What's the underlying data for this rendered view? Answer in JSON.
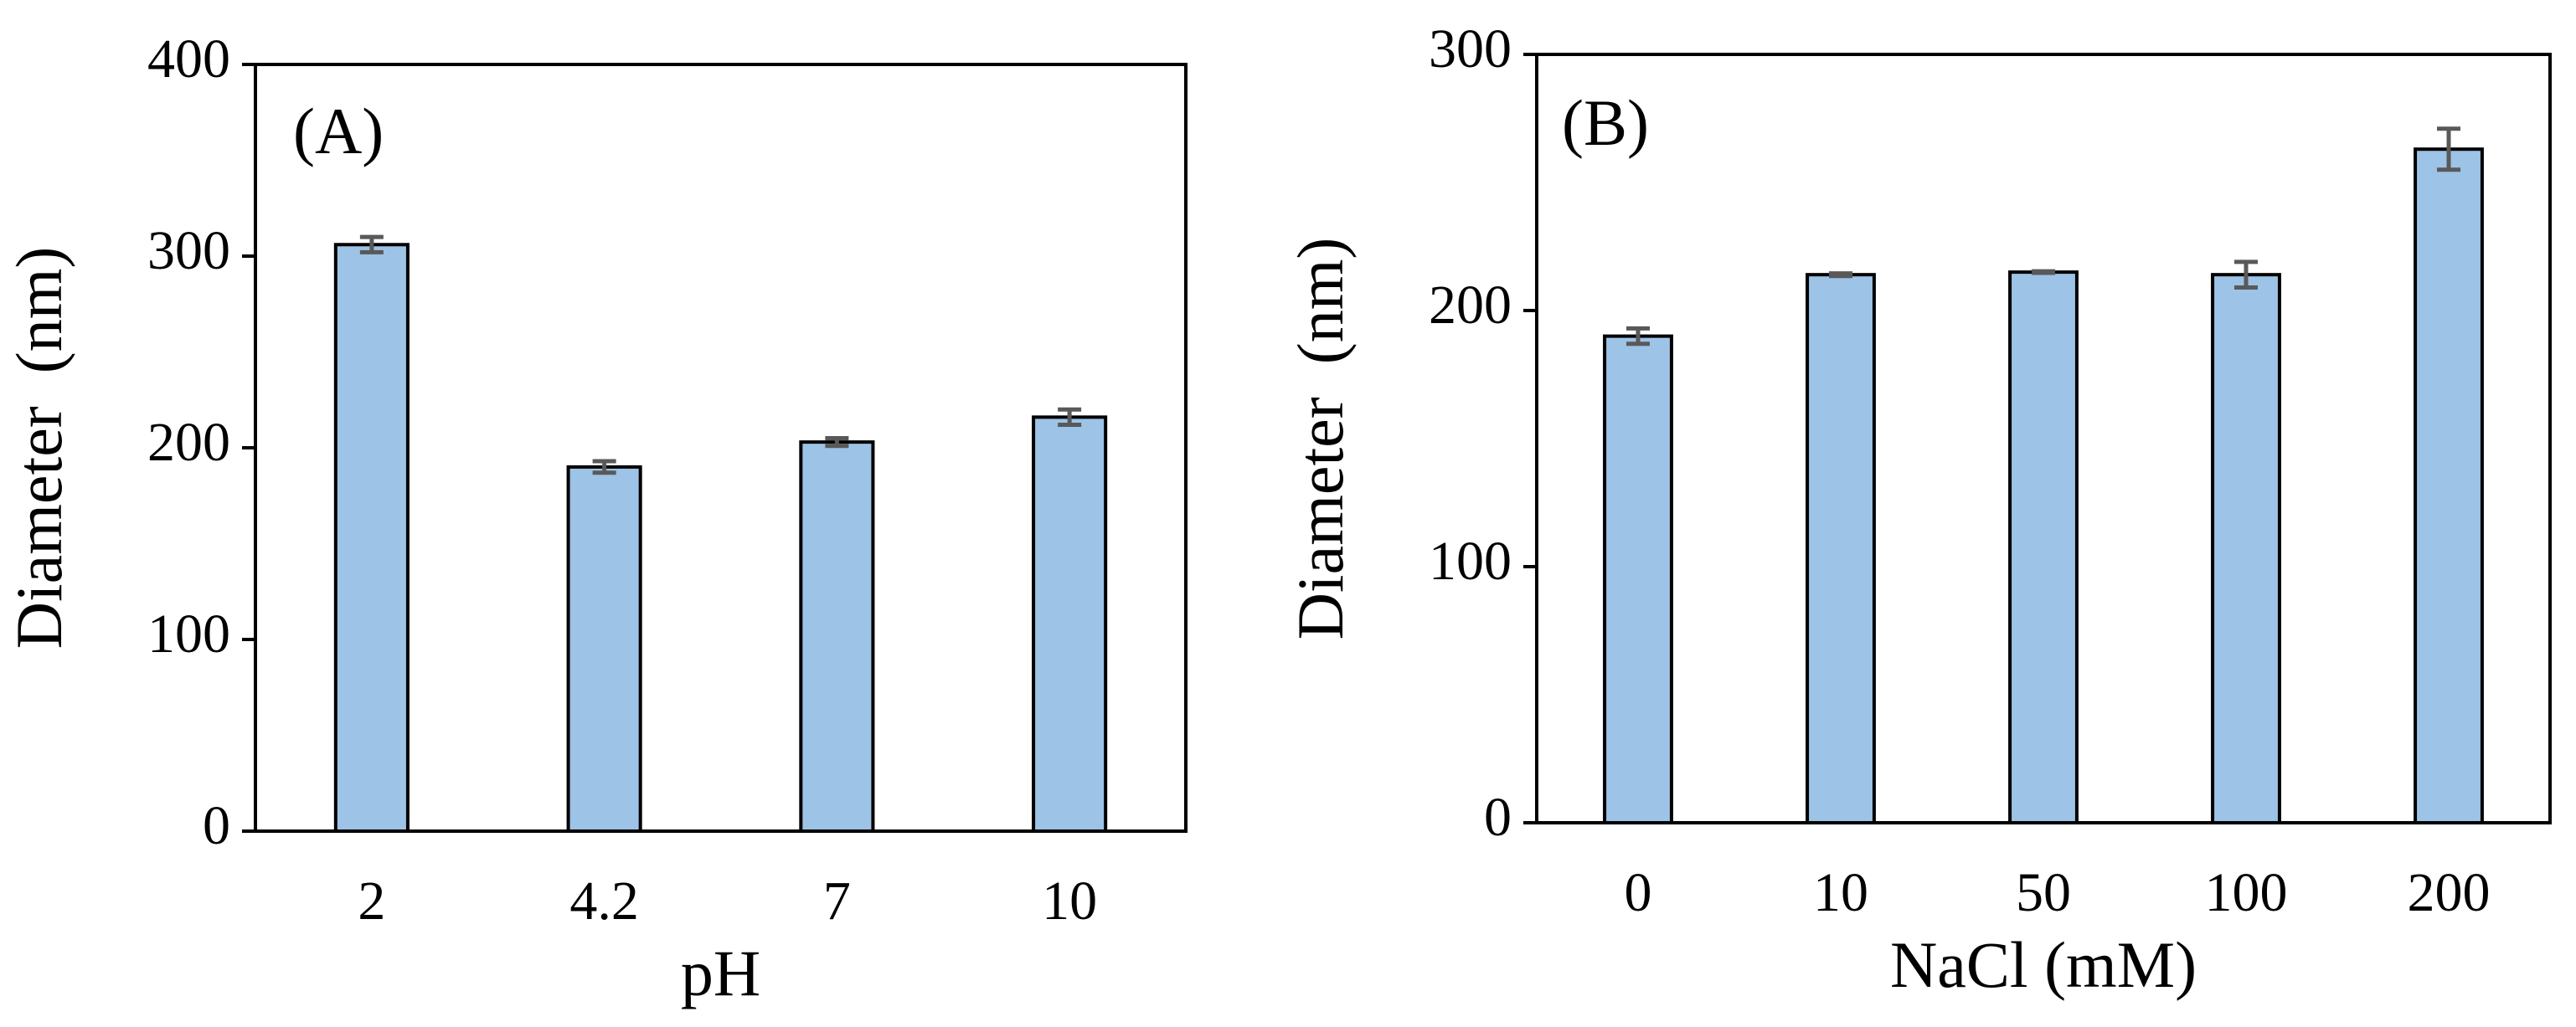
{
  "chart_data": [
    {
      "type": "bar",
      "annotation": "(A)",
      "x_label": "pH",
      "y_label": "Diameter  (nm)",
      "categories": [
        "2",
        "4.2",
        "7",
        "10"
      ],
      "values": [
        306,
        190,
        203,
        216
      ],
      "errors": [
        4,
        3,
        2,
        4
      ],
      "color": "#9dc3e6",
      "error_color": "#595959",
      "ylim": [
        0,
        400
      ],
      "yticks": [
        0,
        100,
        200,
        300,
        400
      ]
    },
    {
      "type": "bar",
      "annotation": "(B)",
      "x_label": "NaCl (mM)",
      "y_label": "Diameter  (nm)",
      "categories": [
        "0",
        "10",
        "50",
        "100",
        "200"
      ],
      "values": [
        190,
        214,
        215,
        214,
        263
      ],
      "errors": [
        3,
        0.5,
        0.3,
        5,
        8
      ],
      "color": "#9dc3e6",
      "error_color": "#595959",
      "ylim": [
        0,
        300
      ],
      "yticks": [
        0,
        100,
        200,
        300
      ]
    }
  ]
}
